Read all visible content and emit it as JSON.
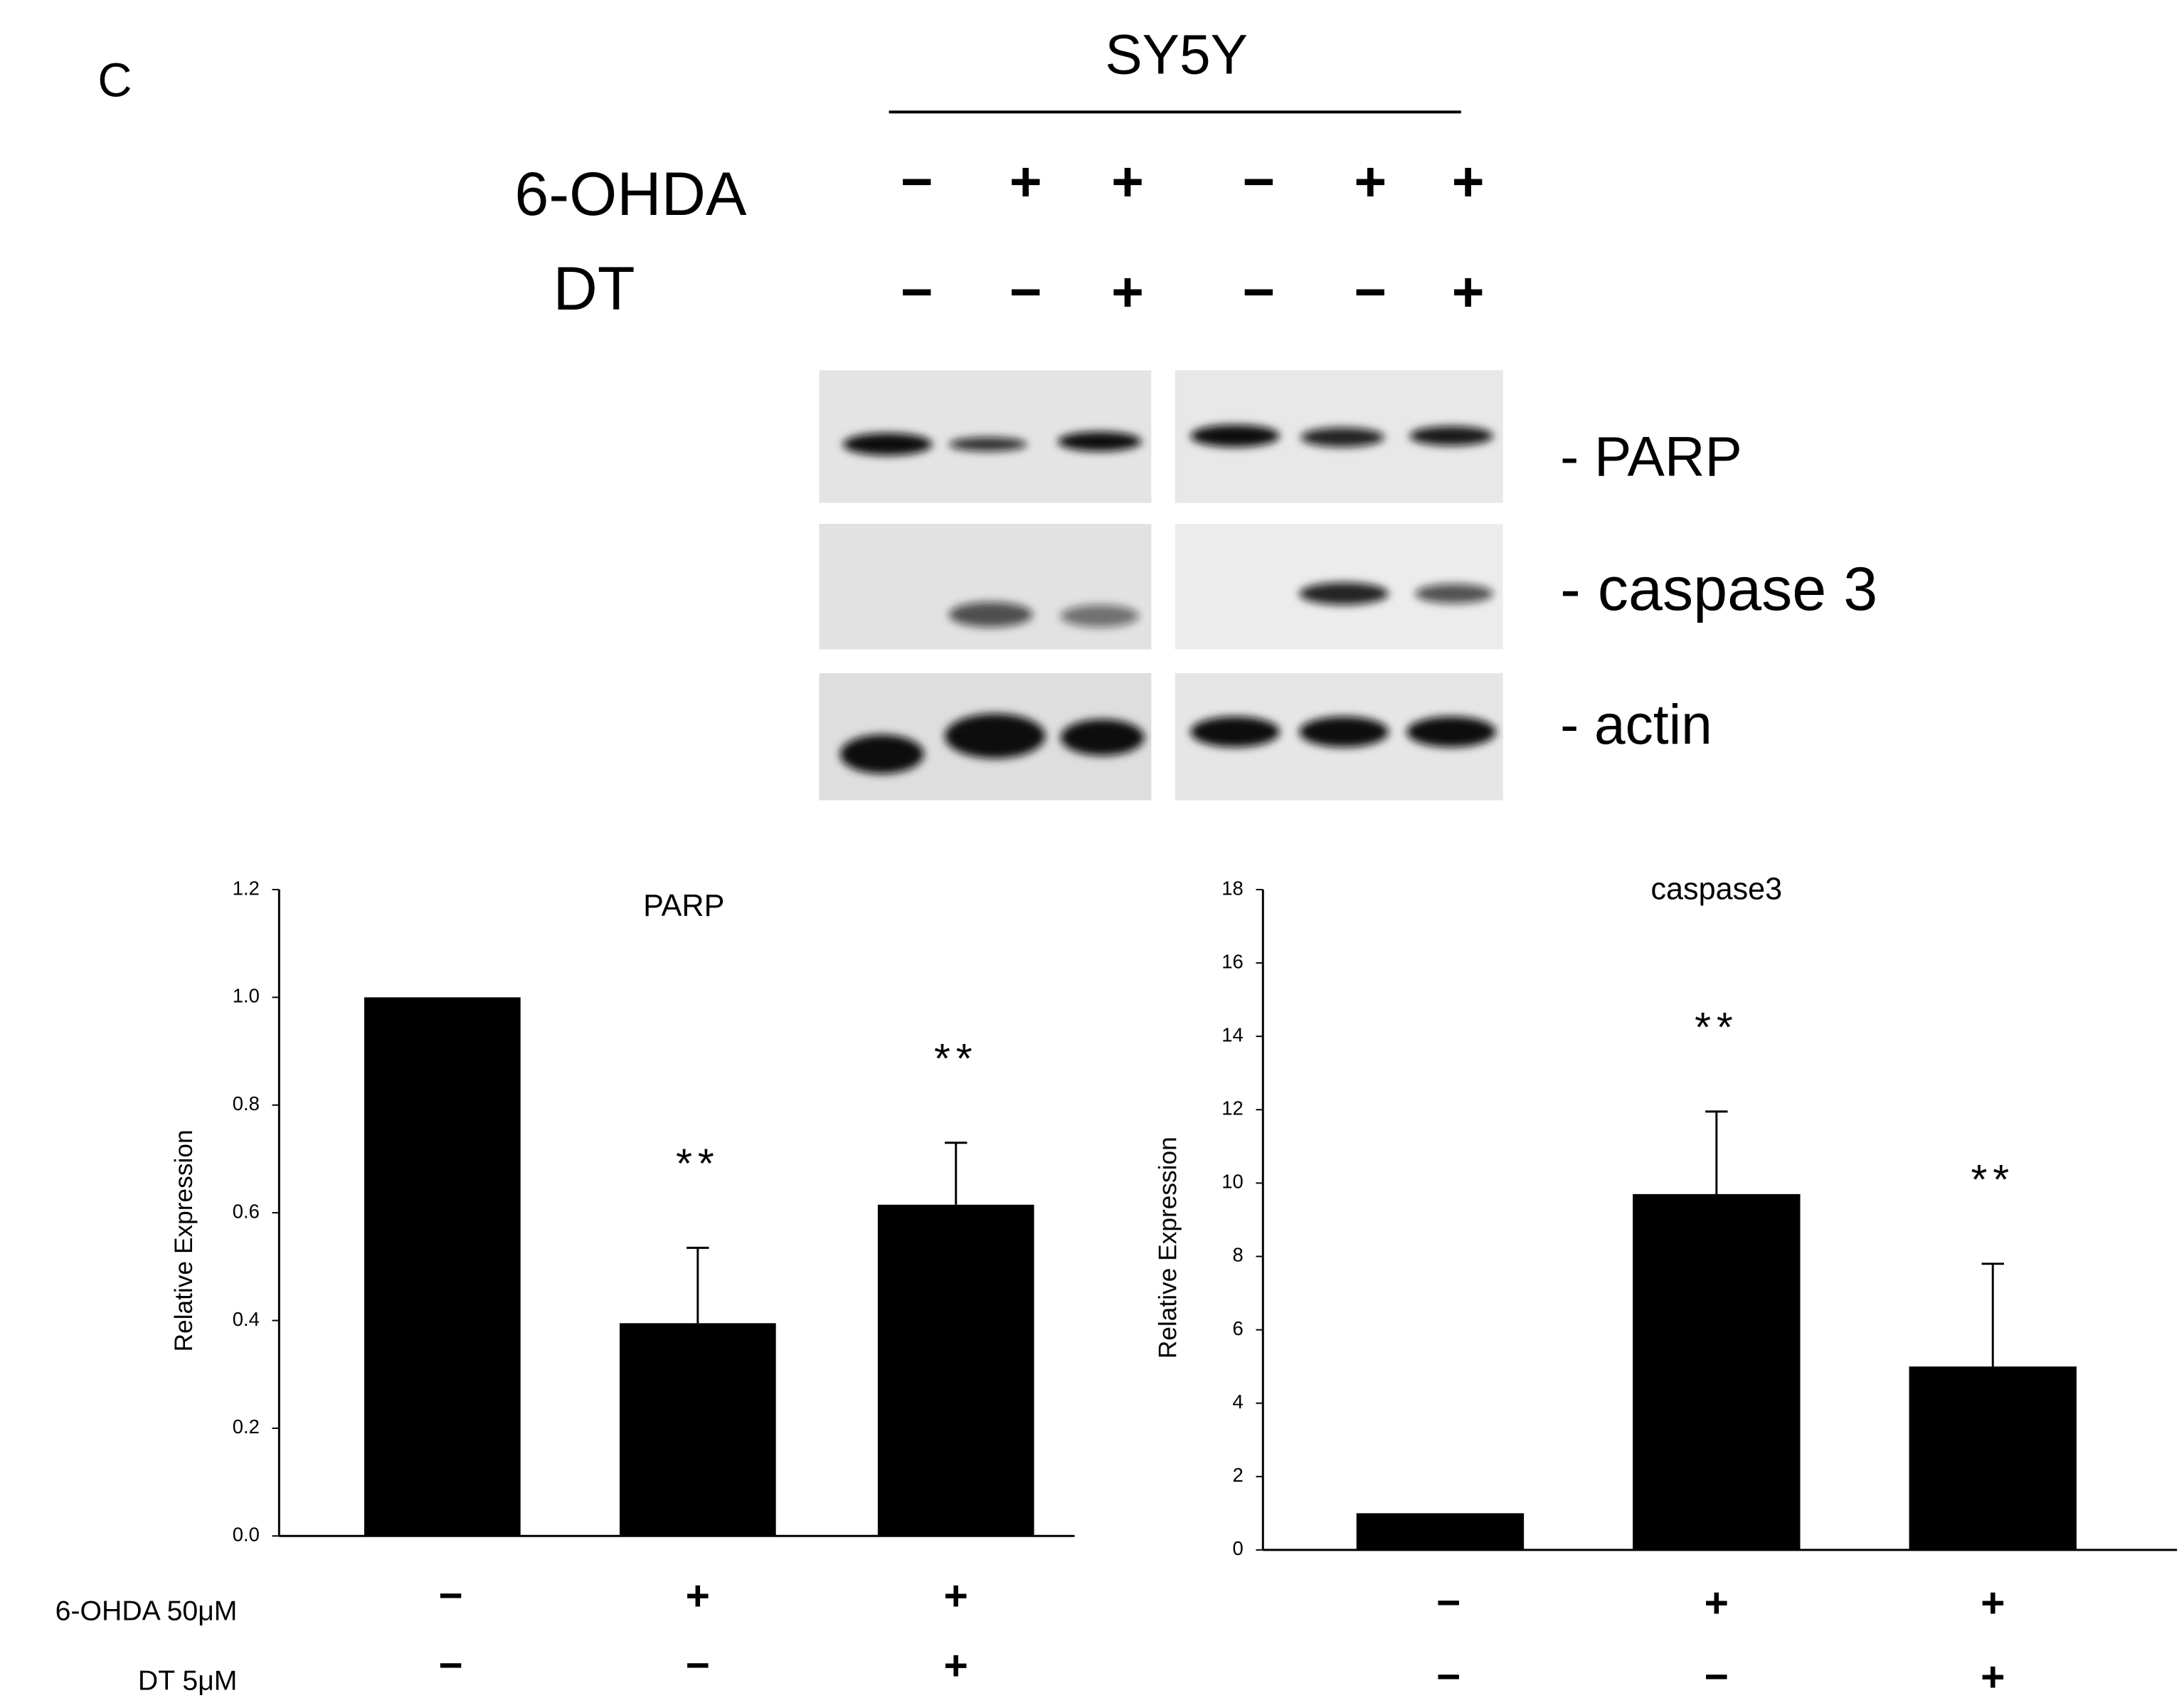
{
  "panel_label": "C",
  "blot": {
    "header": "SY5Y",
    "rows": [
      {
        "label": "6-OHDA",
        "signs": [
          "−",
          "+",
          "+",
          "−",
          "+",
          "+"
        ]
      },
      {
        "label": "DT",
        "signs": [
          "−",
          "−",
          "+",
          "−",
          "−",
          "+"
        ]
      }
    ],
    "band_labels": [
      "- PARP",
      "- caspase 3",
      "- actin"
    ]
  },
  "chart_data": [
    {
      "type": "bar",
      "title": "PARP",
      "y_label": "Relative Expression",
      "color": "#000000",
      "values": [
        1.0,
        0.395,
        0.615
      ],
      "errors": [
        null,
        0.14,
        0.115
      ],
      "value_annotations": [
        null,
        "**",
        "**"
      ],
      "ylim": [
        0,
        1.2
      ],
      "yticks": [
        {
          "value": 0,
          "label": "0.0"
        },
        0.2,
        0.4,
        0.6,
        0.8,
        {
          "value": 1,
          "label": "1.0"
        },
        1.2
      ],
      "condition_rows": [
        {
          "label": "6-OHDA 50μM",
          "signs": [
            "−",
            "+",
            "+"
          ]
        },
        {
          "label": "DT 5μM",
          "signs": [
            "−",
            "−",
            "+"
          ]
        }
      ]
    },
    {
      "type": "bar",
      "title": "caspase3",
      "y_label": "Relative Expression",
      "color": "#000000",
      "values": [
        1.0,
        9.7,
        5.0
      ],
      "errors": [
        null,
        2.25,
        2.8
      ],
      "value_annotations": [
        null,
        "**",
        "**"
      ],
      "ylim": [
        0,
        18
      ],
      "yticks": [
        0,
        2,
        4,
        6,
        8,
        10,
        12,
        14,
        16,
        18
      ],
      "condition_rows": [
        {
          "signs": [
            "−",
            "+",
            "+"
          ]
        },
        {
          "signs": [
            "−",
            "−",
            "+"
          ]
        }
      ]
    }
  ]
}
